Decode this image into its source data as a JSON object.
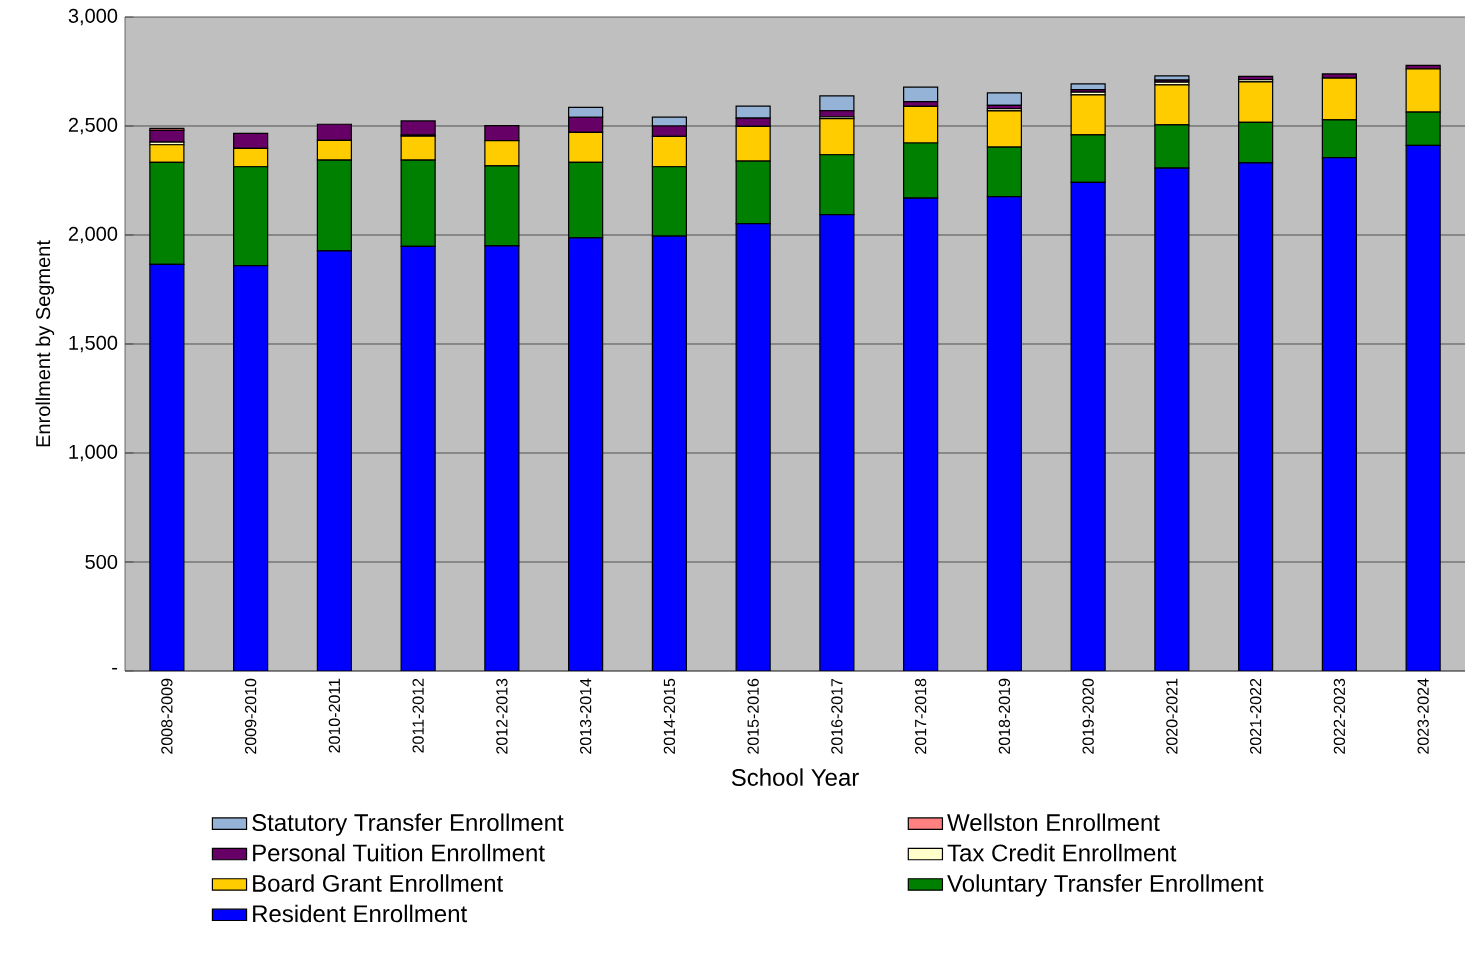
{
  "chart_data": {
    "type": "bar",
    "stacked": true,
    "xlabel": "School Year",
    "ylabel": "Enrollment by Segment",
    "categories": [
      "2008-2009",
      "2009-2010",
      "2010-2011",
      "2011-2012",
      "2012-2013",
      "2013-2014",
      "2014-2015",
      "2015-2016",
      "2016-2017",
      "2017-2018",
      "2018-2019",
      "2019-2020",
      "2020-2021",
      "2021-2022",
      "2022-2023",
      "2023-2024"
    ],
    "series": [
      {
        "name": "Resident Enrollment",
        "color": "#0000ff",
        "values": [
          1865,
          1859,
          1927,
          1948,
          1950,
          1987,
          1995,
          2052,
          2093,
          2169,
          2176,
          2241,
          2307,
          2331,
          2355,
          2411
        ]
      },
      {
        "name": "Voluntary Transfer Enrollment",
        "color": "#008000",
        "values": [
          468,
          454,
          416,
          395,
          367,
          346,
          318,
          287,
          275,
          253,
          227,
          218,
          198,
          186,
          173,
          153
        ]
      },
      {
        "name": "Board Grant Enrollment",
        "color": "#ffcc00",
        "values": [
          81,
          84,
          91,
          110,
          116,
          138,
          139,
          159,
          166,
          168,
          166,
          184,
          184,
          185,
          192,
          198
        ]
      },
      {
        "name": "Tax Credit Enrollment",
        "color": "#ffffcc",
        "values": [
          12,
          null,
          0,
          5,
          null,
          0,
          null,
          0,
          8,
          null,
          11,
          12,
          12,
          11,
          0,
          0
        ]
      },
      {
        "name": "Personal Tuition Enrollment",
        "color": "#660066",
        "values": [
          54,
          69,
          74,
          65,
          69,
          69,
          48,
          38,
          28,
          22,
          15,
          12,
          9,
          15,
          19,
          16
        ]
      },
      {
        "name": "Wellston Enrollment",
        "color": "#ff8080",
        "values": [
          9,
          null,
          0,
          0,
          0,
          0,
          0,
          0,
          0,
          0,
          0,
          0,
          0,
          0,
          0,
          0
        ]
      },
      {
        "name": "Statutory Transfer Enrollment",
        "color": "#95b3d7",
        "values": [
          0,
          0,
          0,
          0,
          0,
          45,
          41,
          55,
          68,
          66,
          57,
          26,
          20,
          0,
          0,
          0
        ]
      }
    ],
    "ylim": [
      0,
      3000
    ],
    "yticks": [
      {
        "value": 0,
        "label": "-"
      },
      500,
      {
        "value": 1000,
        "label": "1,000"
      },
      {
        "value": 1500,
        "label": "1,500"
      },
      {
        "value": 2000,
        "label": "2,000"
      },
      {
        "value": 2500,
        "label": "2,500"
      },
      {
        "value": 3000,
        "label": "3,000"
      }
    ],
    "grid": "y",
    "legend": "bottom"
  }
}
